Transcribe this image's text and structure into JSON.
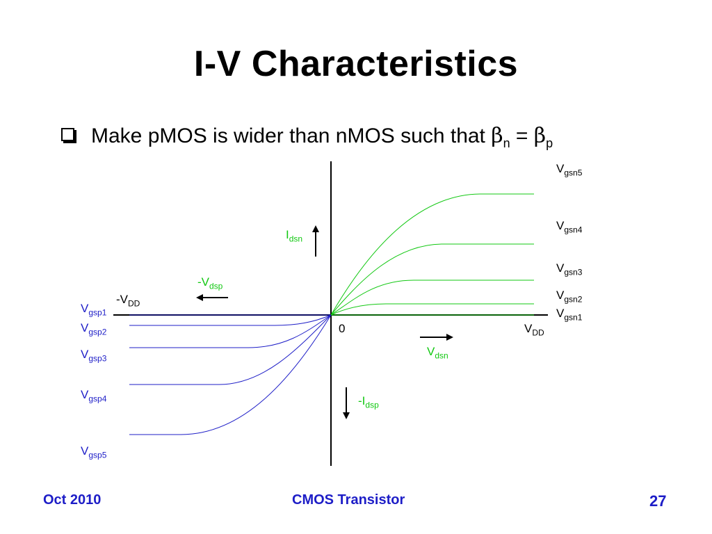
{
  "slide": {
    "title": "I-V Characteristics",
    "bullet": {
      "text": "Make pMOS is wider than nMOS such that ",
      "beta": "β",
      "sub_n": "n",
      "equals": " = ",
      "sub_p": "p"
    }
  },
  "diagram": {
    "colors": {
      "nmos": "#12c812",
      "pmos": "#1d1dc7",
      "axes": "#000000"
    },
    "nmos_curves": [
      {
        "label": "V",
        "sub": "gsn5",
        "saturation_fraction": 0.0
      },
      {
        "label": "V",
        "sub": "gsn4",
        "saturation_fraction": 0.0
      },
      {
        "label": "V",
        "sub": "gsn3",
        "saturation_fraction": 0.0
      },
      {
        "label": "V",
        "sub": "gsn2",
        "saturation_fraction": 0.0
      },
      {
        "label": "V",
        "sub": "gsn1",
        "saturation_fraction": 0.0
      }
    ],
    "pmos_curves": [
      {
        "label": "V",
        "sub": "gsp1"
      },
      {
        "label": "V",
        "sub": "gsp2"
      },
      {
        "label": "V",
        "sub": "gsp3"
      },
      {
        "label": "V",
        "sub": "gsp4"
      },
      {
        "label": "V",
        "sub": "gsp5"
      }
    ],
    "origin_label": "0",
    "vdd_label": {
      "main": "V",
      "sub": "DD"
    },
    "neg_vdd_label": {
      "main": "-V",
      "sub": "DD"
    },
    "idsn_label": {
      "main": "I",
      "sub": "dsn"
    },
    "vdsn_label": {
      "main": "V",
      "sub": "dsn"
    },
    "neg_vdsp_label": {
      "main": "-V",
      "sub": "dsp"
    },
    "neg_idsp_label": {
      "main": "-I",
      "sub": "dsp"
    }
  },
  "footer": {
    "date": "Oct 2010",
    "topic": "CMOS Transistor",
    "page": "27"
  }
}
